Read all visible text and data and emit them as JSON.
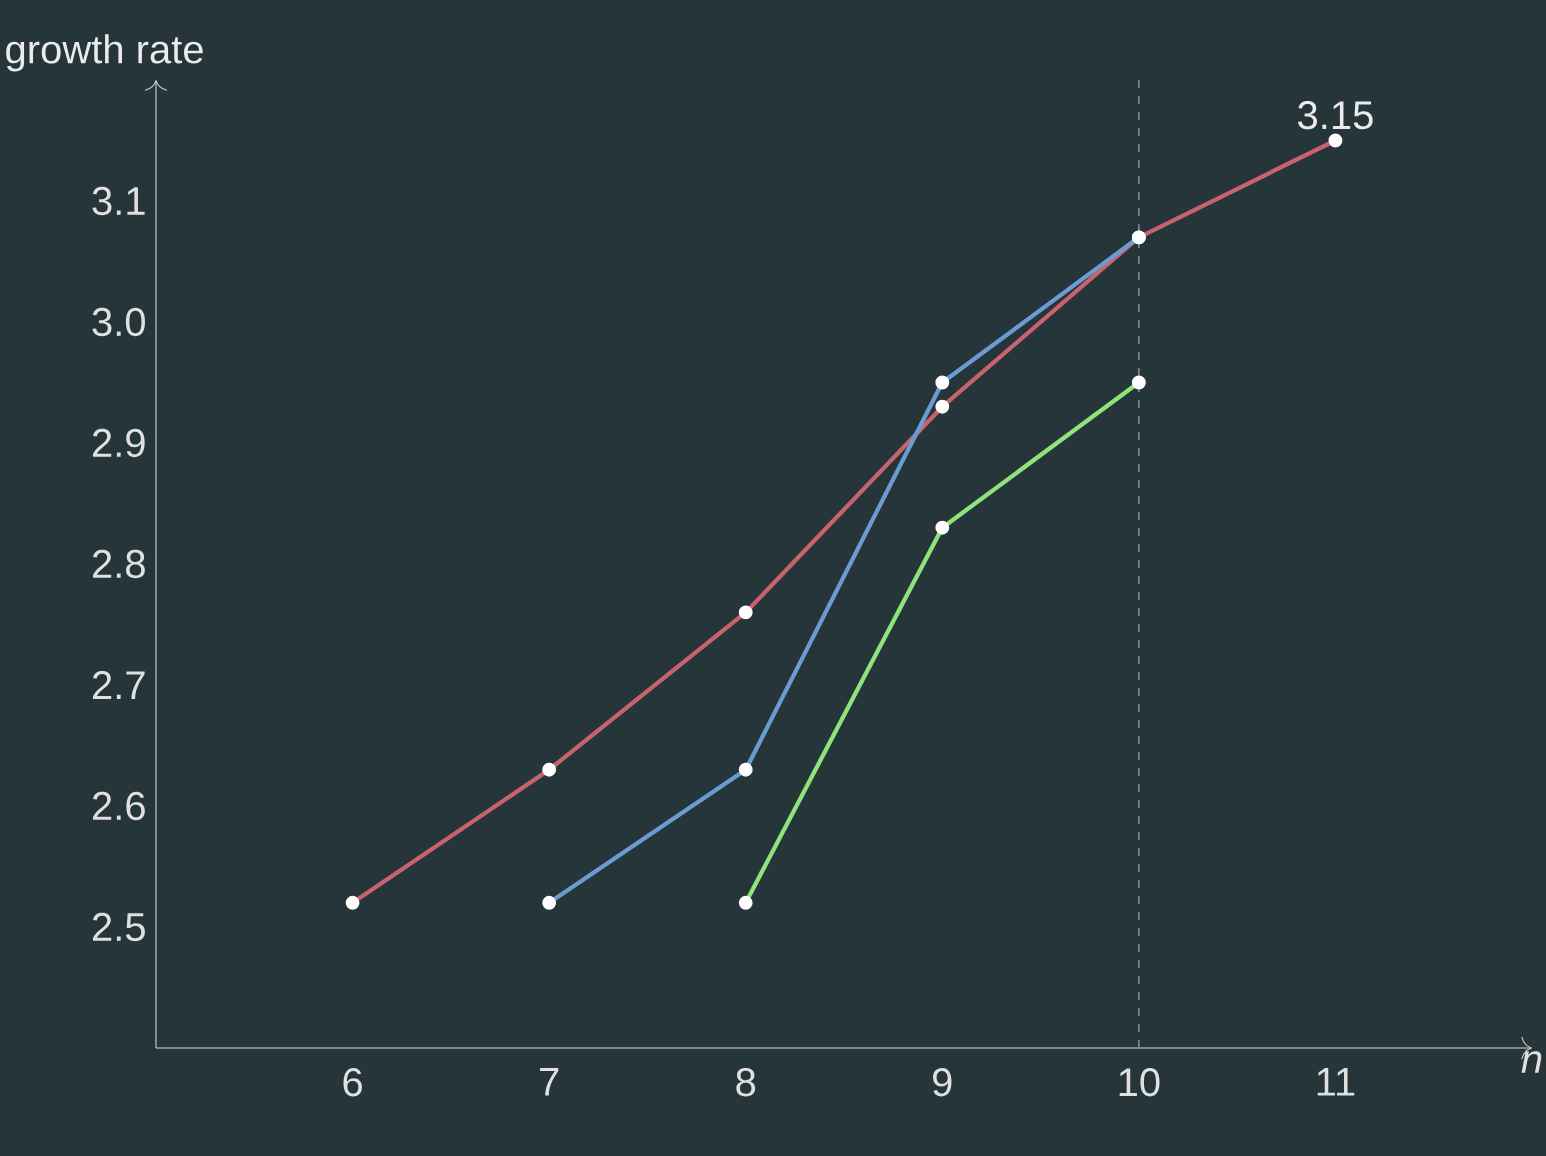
{
  "chart_data": {
    "type": "line",
    "xlabel": "n",
    "ylabel": "growth rate",
    "xlim": [
      5,
      12
    ],
    "ylim": [
      2.4,
      3.2
    ],
    "xticks": [
      6,
      7,
      8,
      9,
      10,
      11
    ],
    "yticks": [
      2.5,
      2.6,
      2.7,
      2.8,
      2.9,
      {
        "value": 3.0,
        "label": "3.0"
      },
      3.1
    ],
    "grid": false,
    "marker": "circle",
    "line_style": "solid",
    "series": [
      {
        "color": "#c8626e",
        "x": [
          6,
          7,
          8,
          9,
          10,
          11
        ],
        "values": [
          2.52,
          2.63,
          2.76,
          2.93,
          3.07,
          3.15
        ]
      },
      {
        "color": "#6a9bd1",
        "x": [
          7,
          8,
          9,
          10
        ],
        "values": [
          2.52,
          2.63,
          2.95,
          3.07
        ]
      },
      {
        "color": "#8ee37a",
        "x": [
          8,
          9,
          10
        ],
        "values": [
          2.52,
          2.83,
          2.95
        ]
      }
    ],
    "ref_lines": [
      {
        "axis": "x",
        "value": 10,
        "color": "#7f8a8c",
        "line_style": "dashed"
      }
    ],
    "annotations": [
      {
        "text": "3.15",
        "x": 11,
        "y": 3.15
      }
    ]
  }
}
